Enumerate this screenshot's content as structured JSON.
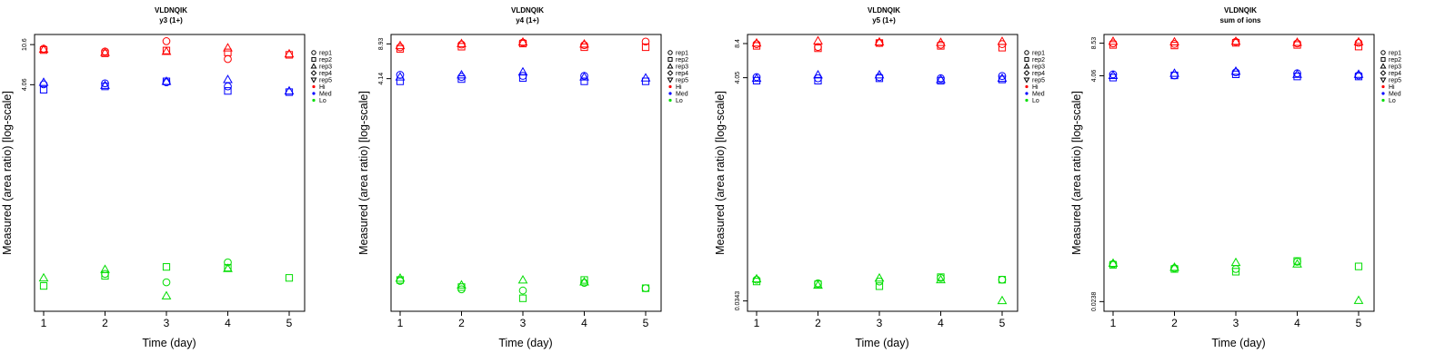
{
  "chart_data": [
    {
      "type": "scatter",
      "title": "VLDNQIK",
      "subtitle": "y3 (1+)",
      "xlabel": "Time (day)",
      "ylabel": "Measured (area ratio) [log-scale]",
      "x_ticks": [
        "1",
        "2",
        "3",
        "4",
        "5"
      ],
      "y_ticks": [
        "10.6",
        "4.06"
      ],
      "y_scale": "log",
      "y_range": [
        0.018,
        13.5
      ],
      "legend_placement": "right",
      "points": {
        "Hi": [
          {
            "x": 1,
            "y": [
              9.6,
              9.3,
              9.5,
              null,
              null
            ]
          },
          {
            "x": 2,
            "y": [
              9.0,
              8.6,
              8.8,
              null,
              null
            ]
          },
          {
            "x": 3,
            "y": [
              11.5,
              9.2,
              9.0,
              null,
              null
            ]
          },
          {
            "x": 4,
            "y": [
              7.5,
              8.8,
              9.8,
              null,
              null
            ]
          },
          {
            "x": 5,
            "y": [
              null,
              8.3,
              8.5,
              null,
              null
            ]
          }
        ],
        "Med": [
          {
            "x": 1,
            "y": [
              4.1,
              3.6,
              4.3,
              null,
              null
            ]
          },
          {
            "x": 2,
            "y": [
              4.2,
              3.9,
              4.0,
              null,
              null
            ]
          },
          {
            "x": 3,
            "y": [
              4.3,
              4.4,
              4.4,
              null,
              null
            ]
          },
          {
            "x": 4,
            "y": [
              3.9,
              3.5,
              4.6,
              null,
              null
            ]
          },
          {
            "x": 5,
            "y": [
              null,
              3.4,
              3.5,
              null,
              null
            ]
          }
        ],
        "Lo": [
          {
            "x": 1,
            "y": [
              null,
              0.033,
              0.04,
              null,
              null
            ]
          },
          {
            "x": 2,
            "y": [
              0.044,
              0.042,
              0.049,
              null,
              null
            ]
          },
          {
            "x": 3,
            "y": [
              0.036,
              0.052,
              0.026,
              null,
              null
            ]
          },
          {
            "x": 4,
            "y": [
              0.058,
              0.051,
              0.05,
              null,
              null
            ]
          },
          {
            "x": 5,
            "y": [
              null,
              0.04,
              null,
              null,
              null
            ]
          }
        ]
      }
    },
    {
      "type": "scatter",
      "title": "VLDNQIK",
      "subtitle": "y4 (1+)",
      "xlabel": "Time (day)",
      "ylabel": "Measured (area ratio) [log-scale]",
      "x_ticks": [
        "1",
        "2",
        "3",
        "4",
        "5"
      ],
      "y_ticks": [
        "8.93",
        "4.14"
      ],
      "y_scale": "log",
      "y_range": [
        0.024,
        11.0
      ],
      "legend_placement": "right",
      "points": {
        "Hi": [
          {
            "x": 1,
            "y": [
              8.3,
              8.0,
              8.6,
              null,
              null
            ]
          },
          {
            "x": 2,
            "y": [
              8.8,
              8.4,
              9.0,
              null,
              null
            ]
          },
          {
            "x": 3,
            "y": [
              9.2,
              9.0,
              9.3,
              null,
              null
            ]
          },
          {
            "x": 4,
            "y": [
              8.7,
              8.3,
              8.9,
              null,
              null
            ]
          },
          {
            "x": 5,
            "y": [
              9.4,
              8.3,
              null,
              null,
              null
            ]
          }
        ],
        "Med": [
          {
            "x": 1,
            "y": [
              4.5,
              3.9,
              4.3,
              null,
              null
            ]
          },
          {
            "x": 2,
            "y": [
              4.3,
              4.1,
              4.5,
              null,
              null
            ]
          },
          {
            "x": 3,
            "y": [
              4.4,
              4.2,
              4.8,
              null,
              null
            ]
          },
          {
            "x": 4,
            "y": [
              4.4,
              3.9,
              4.3,
              null,
              null
            ]
          },
          {
            "x": 5,
            "y": [
              null,
              3.9,
              4.2,
              null,
              null
            ]
          }
        ],
        "Lo": [
          {
            "x": 1,
            "y": [
              0.047,
              0.048,
              0.05,
              null,
              null
            ]
          },
          {
            "x": 2,
            "y": [
              0.039,
              0.041,
              0.043,
              null,
              null
            ]
          },
          {
            "x": 3,
            "y": [
              0.038,
              0.032,
              0.048,
              null,
              null
            ]
          },
          {
            "x": 4,
            "y": [
              0.045,
              0.048,
              0.046,
              null,
              null
            ]
          },
          {
            "x": 5,
            "y": [
              0.04,
              0.04,
              null,
              null,
              null
            ]
          }
        ]
      }
    },
    {
      "type": "scatter",
      "title": "VLDNQIK",
      "subtitle": "y5 (1+)",
      "xlabel": "Time (day)",
      "ylabel": "Measured (area ratio) [log-scale]",
      "x_ticks": [
        "1",
        "2",
        "3",
        "4",
        "5"
      ],
      "y_ticks": [
        "8.4",
        "4.05",
        "0.0343"
      ],
      "y_scale": "log",
      "y_range": [
        0.0275,
        10.2
      ],
      "legend_placement": "right",
      "points": {
        "Hi": [
          {
            "x": 1,
            "y": [
              8.3,
              8.0,
              8.5,
              null,
              null
            ]
          },
          {
            "x": 2,
            "y": [
              7.8,
              7.6,
              8.9,
              null,
              null
            ]
          },
          {
            "x": 3,
            "y": [
              8.5,
              8.5,
              8.7,
              null,
              null
            ]
          },
          {
            "x": 4,
            "y": [
              8.2,
              8.0,
              8.6,
              null,
              null
            ]
          },
          {
            "x": 5,
            "y": [
              8.3,
              7.7,
              8.8,
              null,
              null
            ]
          }
        ],
        "Med": [
          {
            "x": 1,
            "y": [
              4.1,
              3.8,
              4.0,
              null,
              null
            ]
          },
          {
            "x": 2,
            "y": [
              4.0,
              3.8,
              4.3,
              null,
              null
            ]
          },
          {
            "x": 3,
            "y": [
              4.1,
              4.0,
              4.3,
              null,
              null
            ]
          },
          {
            "x": 4,
            "y": [
              4.0,
              3.8,
              3.9,
              null,
              null
            ]
          },
          {
            "x": 5,
            "y": [
              4.2,
              3.9,
              4.0,
              null,
              null
            ]
          }
        ],
        "Lo": [
          {
            "x": 1,
            "y": [
              0.054,
              0.052,
              0.055,
              null,
              null
            ]
          },
          {
            "x": 2,
            "y": [
              0.05,
              0.049,
              0.048,
              null,
              null
            ]
          },
          {
            "x": 3,
            "y": [
              0.052,
              0.047,
              0.056,
              null,
              null
            ]
          },
          {
            "x": 4,
            "y": [
              0.056,
              0.057,
              0.054,
              null,
              null
            ]
          },
          {
            "x": 5,
            "y": [
              0.054,
              0.054,
              0.0345,
              null,
              null
            ]
          }
        ]
      }
    },
    {
      "type": "scatter",
      "title": "VLDNQIK",
      "subtitle": "sum of ions",
      "xlabel": "Time (day)",
      "ylabel": "Measured (area ratio) [log-scale]",
      "x_ticks": [
        "1",
        "2",
        "3",
        "4",
        "5"
      ],
      "y_ticks": [
        "8.53",
        "4.06",
        "0.0238"
      ],
      "y_scale": "log",
      "y_range": [
        0.0191,
        10.4
      ],
      "legend_placement": "right",
      "points": {
        "Hi": [
          {
            "x": 1,
            "y": [
              8.5,
              8.2,
              8.9,
              null,
              null
            ]
          },
          {
            "x": 2,
            "y": [
              8.4,
              8.1,
              8.8,
              null,
              null
            ]
          },
          {
            "x": 3,
            "y": [
              8.8,
              8.6,
              8.9,
              null,
              null
            ]
          },
          {
            "x": 4,
            "y": [
              8.5,
              8.2,
              8.7,
              null,
              null
            ]
          },
          {
            "x": 5,
            "y": [
              8.6,
              7.9,
              8.8,
              null,
              null
            ]
          }
        ],
        "Med": [
          {
            "x": 1,
            "y": [
              4.2,
              3.9,
              4.1,
              null,
              null
            ]
          },
          {
            "x": 2,
            "y": [
              4.1,
              4.1,
              4.3,
              null,
              null
            ]
          },
          {
            "x": 3,
            "y": [
              4.4,
              4.2,
              4.5,
              null,
              null
            ]
          },
          {
            "x": 4,
            "y": [
              4.3,
              4.0,
              4.2,
              null,
              null
            ]
          },
          {
            "x": 5,
            "y": [
              4.1,
              4.0,
              4.2,
              null,
              null
            ]
          }
        ],
        "Lo": [
          {
            "x": 1,
            "y": [
              0.056,
              0.055,
              0.057,
              null,
              null
            ]
          },
          {
            "x": 2,
            "y": [
              0.051,
              0.05,
              0.052,
              null,
              null
            ]
          },
          {
            "x": 3,
            "y": [
              0.05,
              0.047,
              0.058,
              null,
              null
            ]
          },
          {
            "x": 4,
            "y": [
              0.059,
              0.06,
              0.056,
              null,
              null
            ]
          },
          {
            "x": 5,
            "y": [
              null,
              0.053,
              0.0245,
              null,
              null
            ]
          }
        ]
      }
    }
  ],
  "legend": {
    "replicates": [
      {
        "name": "rep1",
        "marker": "circle"
      },
      {
        "name": "rep2",
        "marker": "square"
      },
      {
        "name": "rep3",
        "marker": "triangle-up"
      },
      {
        "name": "rep4",
        "marker": "diamond"
      },
      {
        "name": "rep5",
        "marker": "triangle-down"
      }
    ],
    "levels": [
      {
        "name": "Hi",
        "color": "#ff0000"
      },
      {
        "name": "Med",
        "color": "#0000ff"
      },
      {
        "name": "Lo",
        "color": "#00dd00"
      }
    ]
  }
}
